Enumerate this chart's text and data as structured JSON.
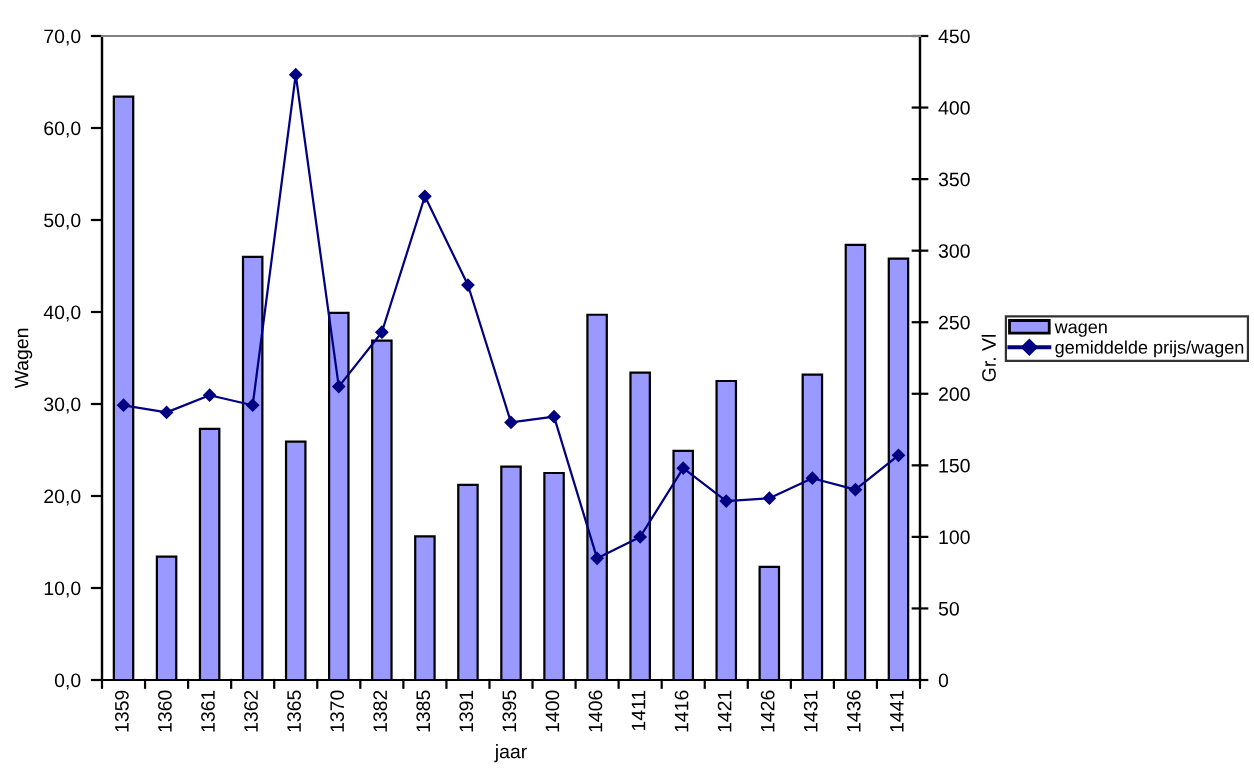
{
  "chart_data": {
    "type": "bar",
    "xlabel": "jaar",
    "ylabel": "Wagen",
    "y2label": "Gr. Vl",
    "categories": [
      "1359",
      "1360",
      "1361",
      "1362",
      "1365",
      "1370",
      "1382",
      "1385",
      "1391",
      "1395",
      "1400",
      "1406",
      "1411",
      "1416",
      "1421",
      "1426",
      "1431",
      "1436",
      "1441"
    ],
    "series": [
      {
        "name": "wagen",
        "color": "#9999ff",
        "values": [
          63.4,
          13.4,
          27.3,
          46.0,
          25.9,
          39.9,
          36.9,
          15.6,
          21.2,
          23.2,
          22.5,
          39.7,
          33.4,
          24.9,
          32.5,
          12.3,
          33.2,
          47.3,
          45.8
        ]
      },
      {
        "name": "gemiddelde prijs/wagen",
        "type": "line",
        "axis": "y2",
        "color": "#000080",
        "marker": "diamond",
        "values": [
          192,
          187,
          199,
          192,
          423,
          205,
          243,
          338,
          276,
          180,
          184,
          85,
          100,
          148,
          125,
          127,
          141,
          133,
          157
        ]
      }
    ],
    "ylim": [
      0,
      70
    ],
    "yticks": [
      {
        "value": 0,
        "label": "0,0"
      },
      {
        "value": 10,
        "label": "10,0"
      },
      {
        "value": 20,
        "label": "20,0"
      },
      {
        "value": 30,
        "label": "30,0"
      },
      {
        "value": 40,
        "label": "40,0"
      },
      {
        "value": 50,
        "label": "50,0"
      },
      {
        "value": 60,
        "label": "60,0"
      },
      {
        "value": 70,
        "label": "70,0"
      }
    ],
    "y2lim": [
      0,
      450
    ],
    "y2ticks": [
      0,
      50,
      100,
      150,
      200,
      250,
      300,
      350,
      400,
      450
    ],
    "legend": "right",
    "grid": false
  }
}
